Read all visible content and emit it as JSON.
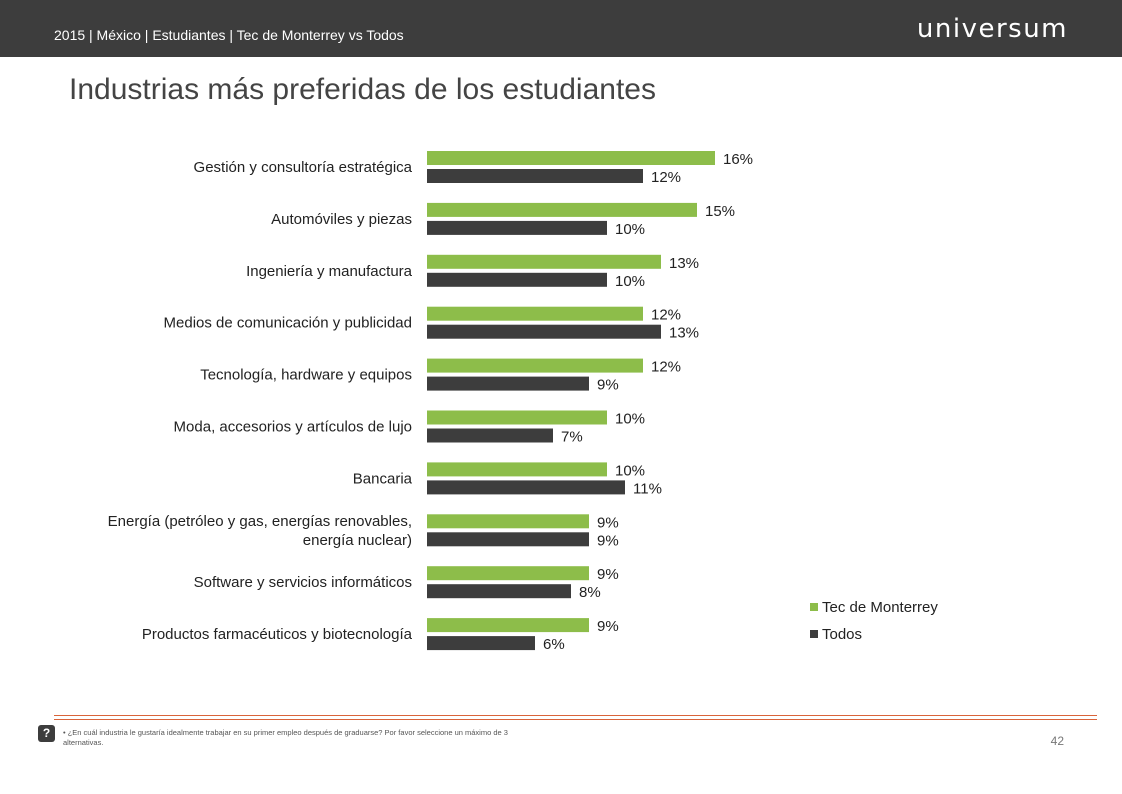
{
  "header": {
    "breadcrumb": "2015 | México | Estudiantes | Tec de Monterrey vs Todos",
    "logo": "universum"
  },
  "page_title": "Industrias más preferidas de los estudiantes",
  "colors": {
    "tec": "#8dbd4a",
    "todos": "#3d3d3d",
    "header_bg": "#3d3d3d",
    "accent_line": "#d9643a"
  },
  "chart_data": {
    "type": "bar",
    "orientation": "horizontal",
    "categories": [
      "Gestión y consultoría estratégica",
      "Automóviles y piezas",
      "Ingeniería y manufactura",
      "Medios de comunicación y publicidad",
      "Tecnología, hardware y equipos",
      "Moda, accesorios y artículos de lujo",
      "Bancaria",
      "Energía (petróleo y gas, energías renovables, energía nuclear)",
      "Software y servicios informáticos",
      "Productos farmacéuticos y biotecnología"
    ],
    "category_lines": [
      [
        "Gestión y consultoría estratégica"
      ],
      [
        "Automóviles y piezas"
      ],
      [
        "Ingeniería y manufactura"
      ],
      [
        "Medios de comunicación y publicidad"
      ],
      [
        "Tecnología, hardware y equipos"
      ],
      [
        "Moda, accesorios y artículos de lujo"
      ],
      [
        "Bancaria"
      ],
      [
        "Energía (petróleo y gas, energías renovables,",
        "energía nuclear)"
      ],
      [
        "Software y servicios informáticos"
      ],
      [
        "Productos farmacéuticos y biotecnología"
      ]
    ],
    "series": [
      {
        "name": "Tec de Monterrey",
        "color": "#8dbd4a",
        "values": [
          16,
          15,
          13,
          12,
          12,
          10,
          10,
          9,
          9,
          9
        ],
        "labels": [
          "16%",
          "15%",
          "13%",
          "12%",
          "12%",
          "10%",
          "10%",
          "9%",
          "9%",
          "9%"
        ]
      },
      {
        "name": "Todos",
        "color": "#3d3d3d",
        "values": [
          12,
          10,
          10,
          13,
          9,
          7,
          11,
          9,
          8,
          6
        ],
        "labels": [
          "12%",
          "10%",
          "10%",
          "13%",
          "9%",
          "7%",
          "11%",
          "9%",
          "8%",
          "6%"
        ]
      }
    ],
    "value_unit": "%",
    "legend_position": "bottom-right",
    "grid": false
  },
  "footer": {
    "help_icon": "?",
    "note": "• ¿En cuál industria le gustaría idealmente trabajar en su primer empleo después de graduarse? Por favor seleccione un máximo de 3 alternativas.",
    "page_number": "42"
  }
}
